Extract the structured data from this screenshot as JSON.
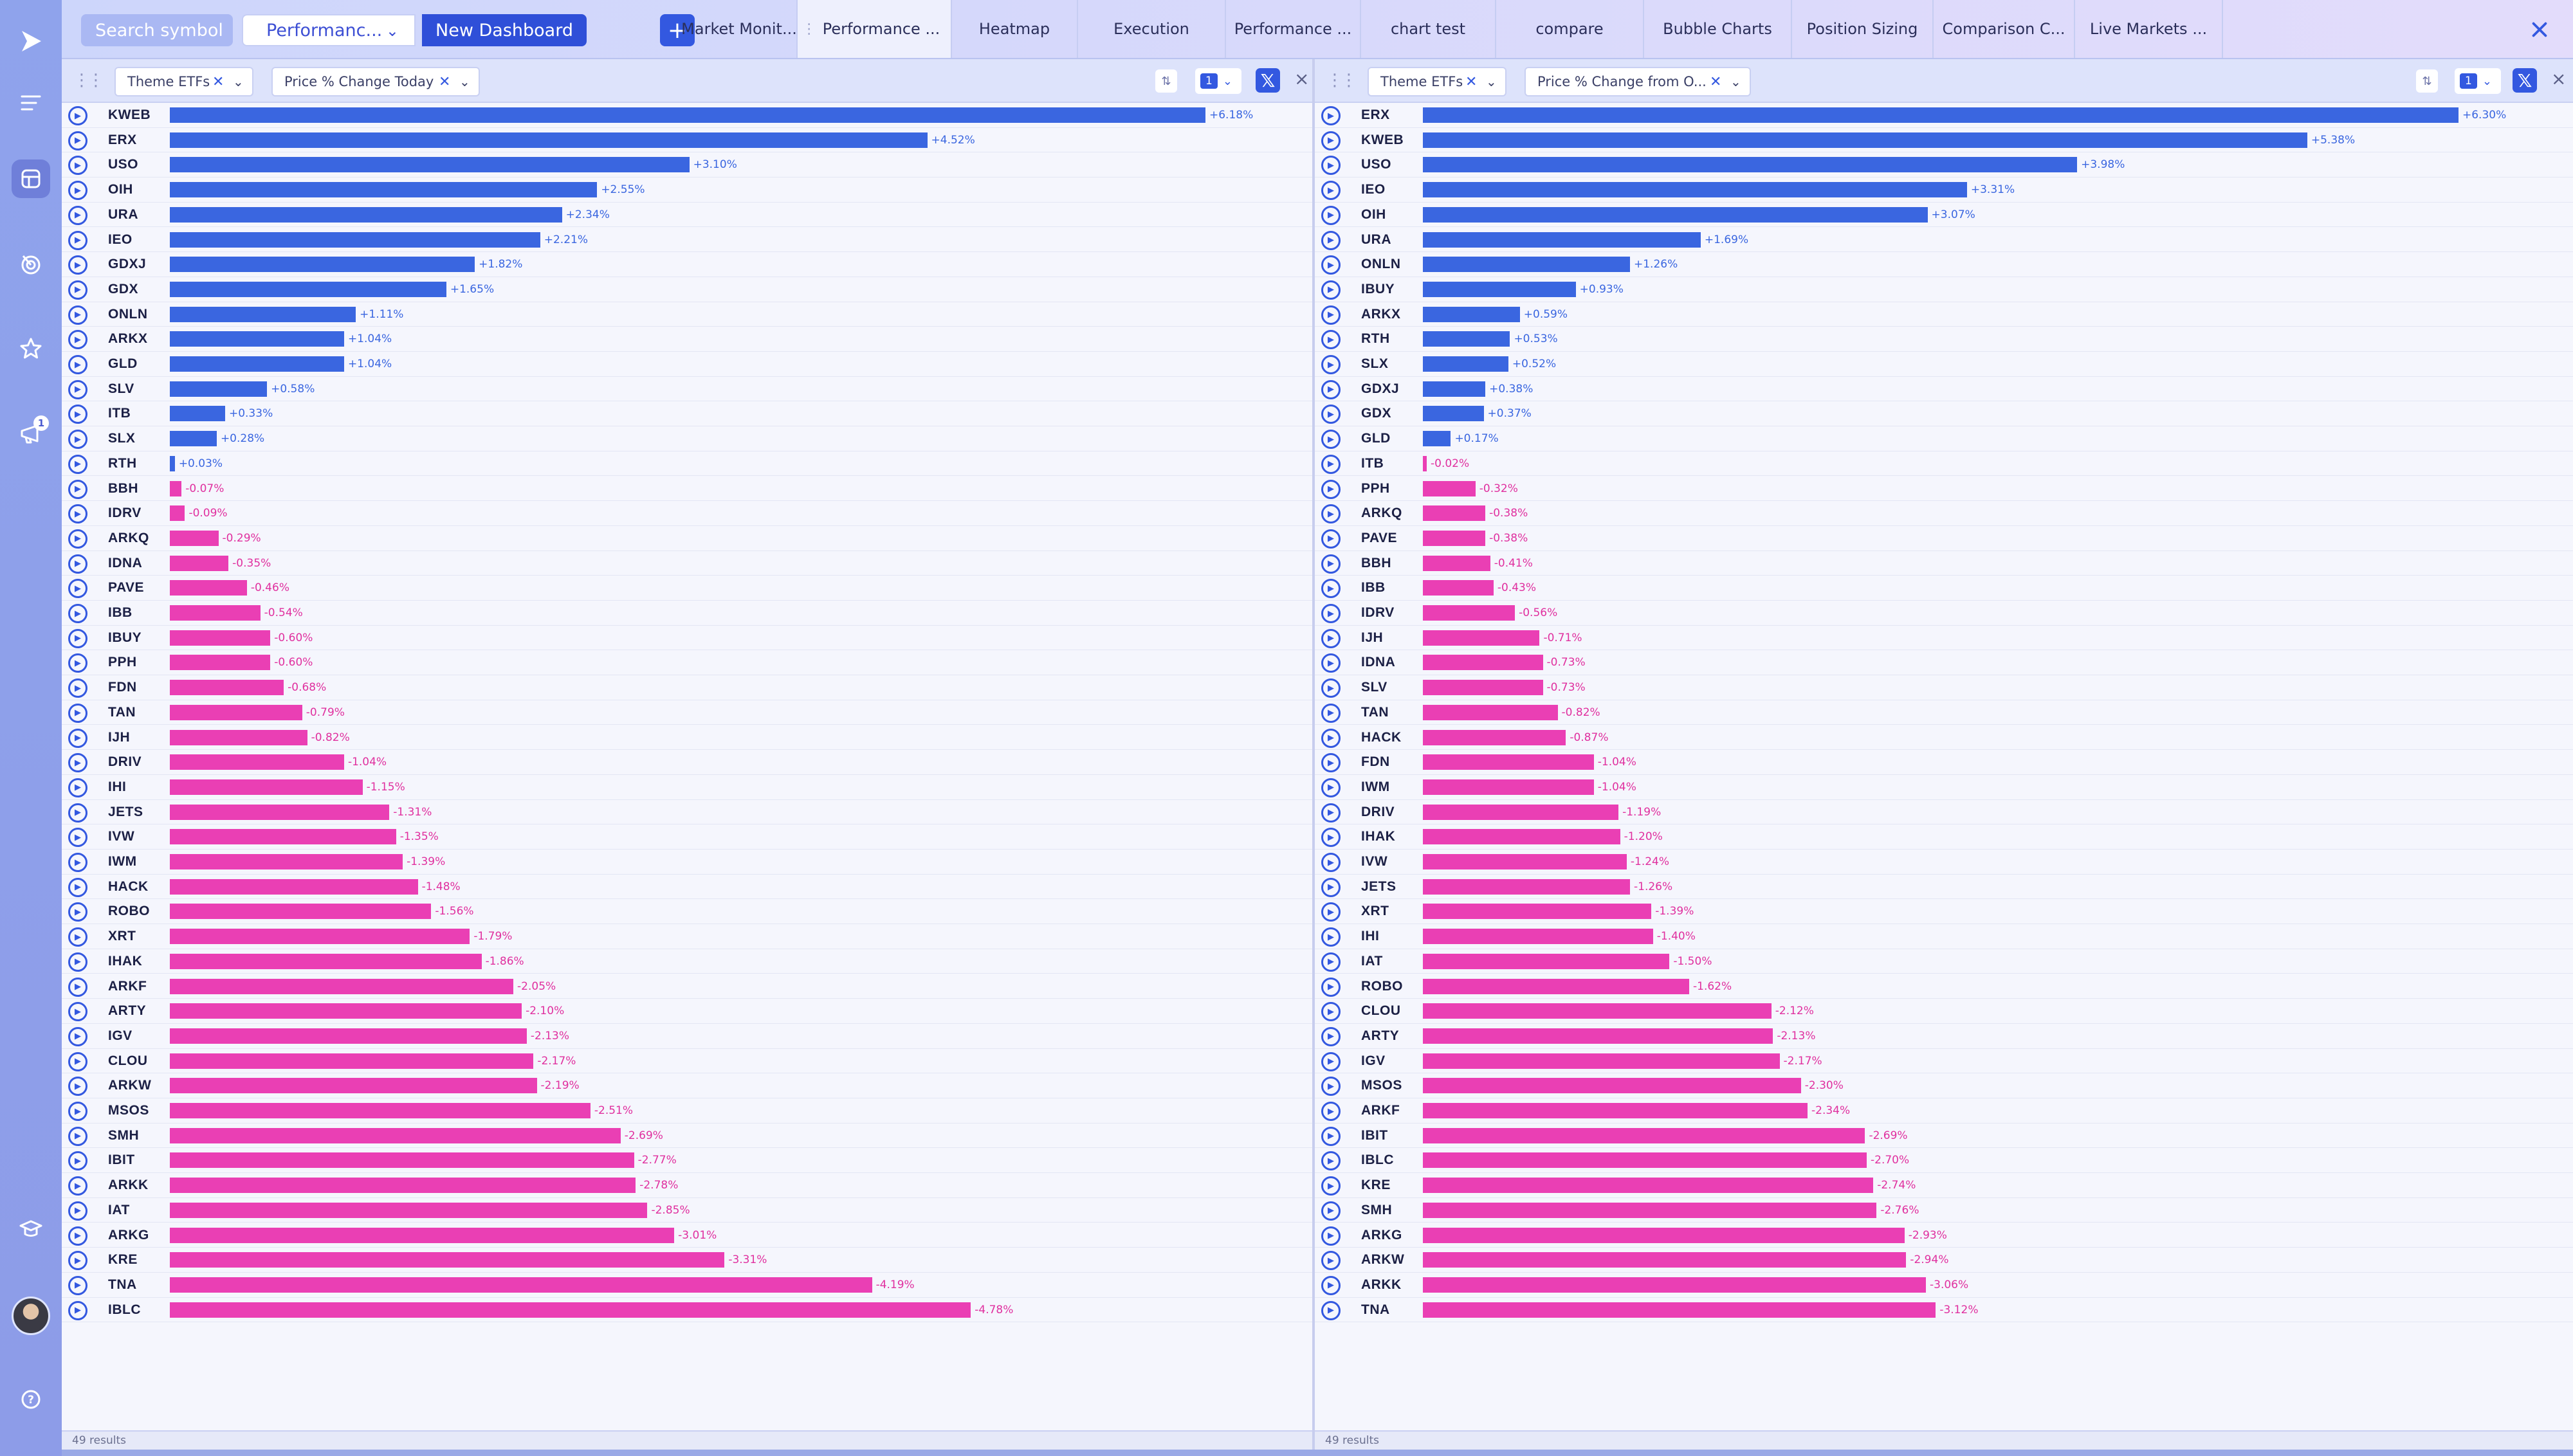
{
  "app": {
    "search_placeholder": "Search symbol",
    "dashboard_selected": "Performanc...",
    "new_dashboard_label": "New Dashboard",
    "add_label": "+",
    "close_label": "×",
    "notification_count": "1",
    "colors": {
      "accent": "#3358e0",
      "positive": "#3a66e0",
      "negative": "#ea3fb4"
    }
  },
  "tabs": [
    {
      "label": "Market Monit..."
    },
    {
      "label": "Performance ...",
      "active": true
    },
    {
      "label": "Heatmap"
    },
    {
      "label": "Execution"
    },
    {
      "label": "Performance ..."
    },
    {
      "label": "chart test"
    },
    {
      "label": "compare"
    },
    {
      "label": "Bubble Charts"
    },
    {
      "label": "Position Sizing"
    },
    {
      "label": "Comparison C..."
    },
    {
      "label": "Live Markets ..."
    }
  ],
  "sidebar_icons": [
    "logo-icon",
    "menu-icon",
    "dashboard-icon",
    "radar-icon",
    "star-icon",
    "campaign-icon",
    "education-icon",
    "help-icon"
  ],
  "panels": [
    {
      "filter1": "Theme ETFs",
      "filter2": "Price % Change Today",
      "count": "1",
      "footer": "49 results",
      "rows": [
        {
          "sym": "KWEB",
          "v": 6.18,
          "t": "+6.18%"
        },
        {
          "sym": "ERX",
          "v": 4.52,
          "t": "+4.52%"
        },
        {
          "sym": "USO",
          "v": 3.1,
          "t": "+3.10%"
        },
        {
          "sym": "OIH",
          "v": 2.55,
          "t": "+2.55%"
        },
        {
          "sym": "URA",
          "v": 2.34,
          "t": "+2.34%"
        },
        {
          "sym": "IEO",
          "v": 2.21,
          "t": "+2.21%"
        },
        {
          "sym": "GDXJ",
          "v": 1.82,
          "t": "+1.82%"
        },
        {
          "sym": "GDX",
          "v": 1.65,
          "t": "+1.65%"
        },
        {
          "sym": "ONLN",
          "v": 1.11,
          "t": "+1.11%"
        },
        {
          "sym": "ARKX",
          "v": 1.04,
          "t": "+1.04%"
        },
        {
          "sym": "GLD",
          "v": 1.04,
          "t": "+1.04%"
        },
        {
          "sym": "SLV",
          "v": 0.58,
          "t": "+0.58%"
        },
        {
          "sym": "ITB",
          "v": 0.33,
          "t": "+0.33%"
        },
        {
          "sym": "SLX",
          "v": 0.28,
          "t": "+0.28%"
        },
        {
          "sym": "RTH",
          "v": 0.03,
          "t": "+0.03%"
        },
        {
          "sym": "BBH",
          "v": -0.07,
          "t": "-0.07%"
        },
        {
          "sym": "IDRV",
          "v": -0.09,
          "t": "-0.09%"
        },
        {
          "sym": "ARKQ",
          "v": -0.29,
          "t": "-0.29%"
        },
        {
          "sym": "IDNA",
          "v": -0.35,
          "t": "-0.35%"
        },
        {
          "sym": "PAVE",
          "v": -0.46,
          "t": "-0.46%"
        },
        {
          "sym": "IBB",
          "v": -0.54,
          "t": "-0.54%"
        },
        {
          "sym": "IBUY",
          "v": -0.6,
          "t": "-0.60%"
        },
        {
          "sym": "PPH",
          "v": -0.6,
          "t": "-0.60%"
        },
        {
          "sym": "FDN",
          "v": -0.68,
          "t": "-0.68%"
        },
        {
          "sym": "TAN",
          "v": -0.79,
          "t": "-0.79%"
        },
        {
          "sym": "IJH",
          "v": -0.82,
          "t": "-0.82%"
        },
        {
          "sym": "DRIV",
          "v": -1.04,
          "t": "-1.04%"
        },
        {
          "sym": "IHI",
          "v": -1.15,
          "t": "-1.15%"
        },
        {
          "sym": "JETS",
          "v": -1.31,
          "t": "-1.31%"
        },
        {
          "sym": "IVW",
          "v": -1.35,
          "t": "-1.35%"
        },
        {
          "sym": "IWM",
          "v": -1.39,
          "t": "-1.39%"
        },
        {
          "sym": "HACK",
          "v": -1.48,
          "t": "-1.48%"
        },
        {
          "sym": "ROBO",
          "v": -1.56,
          "t": "-1.56%"
        },
        {
          "sym": "XRT",
          "v": -1.79,
          "t": "-1.79%"
        },
        {
          "sym": "IHAK",
          "v": -1.86,
          "t": "-1.86%"
        },
        {
          "sym": "ARKF",
          "v": -2.05,
          "t": "-2.05%"
        },
        {
          "sym": "ARTY",
          "v": -2.1,
          "t": "-2.10%"
        },
        {
          "sym": "IGV",
          "v": -2.13,
          "t": "-2.13%"
        },
        {
          "sym": "CLOU",
          "v": -2.17,
          "t": "-2.17%"
        },
        {
          "sym": "ARKW",
          "v": -2.19,
          "t": "-2.19%"
        },
        {
          "sym": "MSOS",
          "v": -2.51,
          "t": "-2.51%"
        },
        {
          "sym": "SMH",
          "v": -2.69,
          "t": "-2.69%"
        },
        {
          "sym": "IBIT",
          "v": -2.77,
          "t": "-2.77%"
        },
        {
          "sym": "ARKK",
          "v": -2.78,
          "t": "-2.78%"
        },
        {
          "sym": "IAT",
          "v": -2.85,
          "t": "-2.85%"
        },
        {
          "sym": "ARKG",
          "v": -3.01,
          "t": "-3.01%"
        },
        {
          "sym": "KRE",
          "v": -3.31,
          "t": "-3.31%"
        },
        {
          "sym": "TNA",
          "v": -4.19,
          "t": "-4.19%"
        },
        {
          "sym": "IBLC",
          "v": -4.78,
          "t": "-4.78%"
        }
      ]
    },
    {
      "filter1": "Theme ETFs",
      "filter2": "Price % Change from O...",
      "count": "1",
      "footer": "49 results",
      "rows": [
        {
          "sym": "ERX",
          "v": 6.3,
          "t": "+6.30%"
        },
        {
          "sym": "KWEB",
          "v": 5.38,
          "t": "+5.38%"
        },
        {
          "sym": "USO",
          "v": 3.98,
          "t": "+3.98%"
        },
        {
          "sym": "IEO",
          "v": 3.31,
          "t": "+3.31%"
        },
        {
          "sym": "OIH",
          "v": 3.07,
          "t": "+3.07%"
        },
        {
          "sym": "URA",
          "v": 1.69,
          "t": "+1.69%"
        },
        {
          "sym": "ONLN",
          "v": 1.26,
          "t": "+1.26%"
        },
        {
          "sym": "IBUY",
          "v": 0.93,
          "t": "+0.93%"
        },
        {
          "sym": "ARKX",
          "v": 0.59,
          "t": "+0.59%"
        },
        {
          "sym": "RTH",
          "v": 0.53,
          "t": "+0.53%"
        },
        {
          "sym": "SLX",
          "v": 0.52,
          "t": "+0.52%"
        },
        {
          "sym": "GDXJ",
          "v": 0.38,
          "t": "+0.38%"
        },
        {
          "sym": "GDX",
          "v": 0.37,
          "t": "+0.37%"
        },
        {
          "sym": "GLD",
          "v": 0.17,
          "t": "+0.17%"
        },
        {
          "sym": "ITB",
          "v": -0.02,
          "t": "-0.02%"
        },
        {
          "sym": "PPH",
          "v": -0.32,
          "t": "-0.32%"
        },
        {
          "sym": "ARKQ",
          "v": -0.38,
          "t": "-0.38%"
        },
        {
          "sym": "PAVE",
          "v": -0.38,
          "t": "-0.38%"
        },
        {
          "sym": "BBH",
          "v": -0.41,
          "t": "-0.41%"
        },
        {
          "sym": "IBB",
          "v": -0.43,
          "t": "-0.43%"
        },
        {
          "sym": "IDRV",
          "v": -0.56,
          "t": "-0.56%"
        },
        {
          "sym": "IJH",
          "v": -0.71,
          "t": "-0.71%"
        },
        {
          "sym": "IDNA",
          "v": -0.73,
          "t": "-0.73%"
        },
        {
          "sym": "SLV",
          "v": -0.73,
          "t": "-0.73%"
        },
        {
          "sym": "TAN",
          "v": -0.82,
          "t": "-0.82%"
        },
        {
          "sym": "HACK",
          "v": -0.87,
          "t": "-0.87%"
        },
        {
          "sym": "FDN",
          "v": -1.04,
          "t": "-1.04%"
        },
        {
          "sym": "IWM",
          "v": -1.04,
          "t": "-1.04%"
        },
        {
          "sym": "DRIV",
          "v": -1.19,
          "t": "-1.19%"
        },
        {
          "sym": "IHAK",
          "v": -1.2,
          "t": "-1.20%"
        },
        {
          "sym": "IVW",
          "v": -1.24,
          "t": "-1.24%"
        },
        {
          "sym": "JETS",
          "v": -1.26,
          "t": "-1.26%"
        },
        {
          "sym": "XRT",
          "v": -1.39,
          "t": "-1.39%"
        },
        {
          "sym": "IHI",
          "v": -1.4,
          "t": "-1.40%"
        },
        {
          "sym": "IAT",
          "v": -1.5,
          "t": "-1.50%"
        },
        {
          "sym": "ROBO",
          "v": -1.62,
          "t": "-1.62%"
        },
        {
          "sym": "CLOU",
          "v": -2.12,
          "t": "-2.12%"
        },
        {
          "sym": "ARTY",
          "v": -2.13,
          "t": "-2.13%"
        },
        {
          "sym": "IGV",
          "v": -2.17,
          "t": "-2.17%"
        },
        {
          "sym": "MSOS",
          "v": -2.3,
          "t": "-2.30%"
        },
        {
          "sym": "ARKF",
          "v": -2.34,
          "t": "-2.34%"
        },
        {
          "sym": "IBIT",
          "v": -2.69,
          "t": "-2.69%"
        },
        {
          "sym": "IBLC",
          "v": -2.7,
          "t": "-2.70%"
        },
        {
          "sym": "KRE",
          "v": -2.74,
          "t": "-2.74%"
        },
        {
          "sym": "SMH",
          "v": -2.76,
          "t": "-2.76%"
        },
        {
          "sym": "ARKG",
          "v": -2.93,
          "t": "-2.93%"
        },
        {
          "sym": "ARKW",
          "v": -2.94,
          "t": "-2.94%"
        },
        {
          "sym": "ARKK",
          "v": -3.06,
          "t": "-3.06%"
        },
        {
          "sym": "TNA",
          "v": -3.12,
          "t": "-3.12%"
        }
      ]
    }
  ]
}
